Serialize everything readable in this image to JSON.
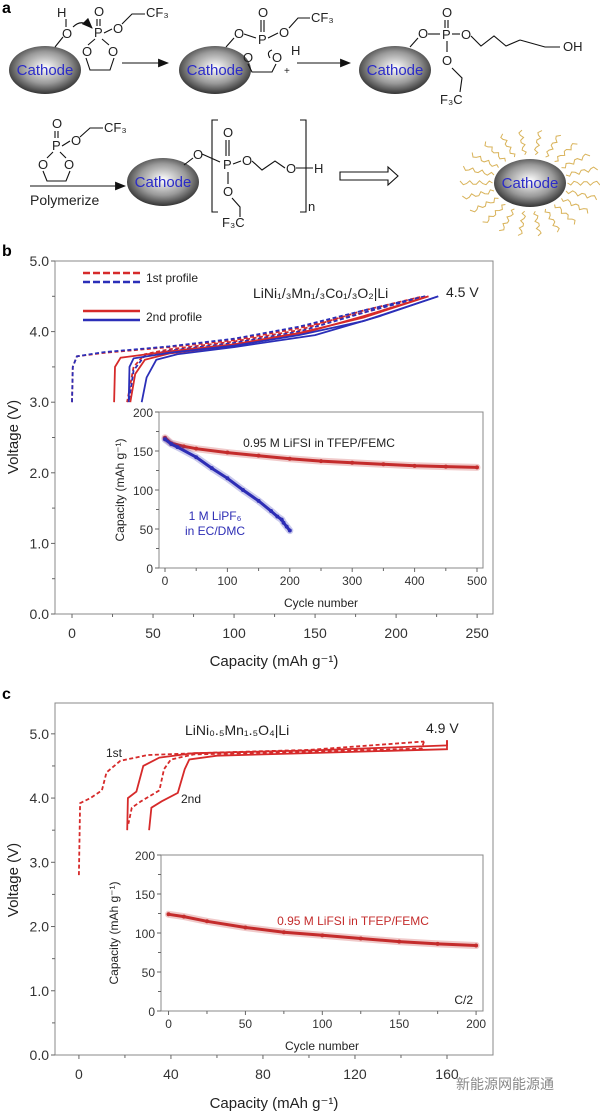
{
  "diagram": {
    "panel_label": "a",
    "cathode": "Cathode",
    "O": "O",
    "P": "P",
    "H": "H",
    "OH": "OH",
    "CF3": "CF₃",
    "F3C": "F₃C",
    "plus": "+",
    "polymerize": "Polymerize",
    "n": "n"
  },
  "watermark": "新能源网能源通",
  "colors": {
    "red": "#d62a2a",
    "blue": "#2b2fb8",
    "inset_red": "#c42c2c",
    "inset_blue": "#2d2db5",
    "cathode_text": "#2b2bc8",
    "hair": "#d9b35a"
  },
  "chart_data": [
    {
      "id": "b",
      "panel_label": "b",
      "type": "line",
      "xlabel": "Capacity (mAh g⁻¹)",
      "ylabel": "Voltage (V)",
      "xlim": [
        -20,
        260
      ],
      "ylim": [
        0,
        5
      ],
      "xticks": [
        0,
        50,
        100,
        150,
        200,
        250
      ],
      "yticks": [
        0.0,
        1.0,
        2.0,
        3.0,
        4.0,
        5.0
      ],
      "grid": false,
      "legend_position": "top-left",
      "legend": [
        {
          "label": "1st profile",
          "style": "dashed"
        },
        {
          "label": "2nd profile",
          "style": "solid"
        }
      ],
      "annotations": {
        "cell": "LiNi₁/₃Mn₁/₃Co₁/₃O₂|Li",
        "cutoff": "4.5 V"
      },
      "series": [
        {
          "color": "red",
          "style": "dashed",
          "points": [
            [
              0,
              3.0
            ],
            [
              0.5,
              3.5
            ],
            [
              3,
              3.65
            ],
            [
              20,
              3.7
            ],
            [
              60,
              3.78
            ],
            [
              100,
              3.88
            ],
            [
              140,
              4.05
            ],
            [
              180,
              4.27
            ],
            [
              215,
              4.49
            ]
          ]
        },
        {
          "color": "red",
          "style": "dashed",
          "points": [
            [
              215,
              4.49
            ],
            [
              180,
              4.3
            ],
            [
              140,
              4.02
            ],
            [
              100,
              3.86
            ],
            [
              60,
              3.75
            ],
            [
              45,
              3.68
            ],
            [
              38,
              3.5
            ],
            [
              34,
              3.0
            ]
          ]
        },
        {
          "color": "blue",
          "style": "dashed",
          "points": [
            [
              0,
              3.0
            ],
            [
              0.5,
              3.5
            ],
            [
              3,
              3.65
            ],
            [
              20,
              3.71
            ],
            [
              60,
              3.79
            ],
            [
              100,
              3.9
            ],
            [
              140,
              4.07
            ],
            [
              180,
              4.3
            ],
            [
              218,
              4.5
            ]
          ]
        },
        {
          "color": "blue",
          "style": "dashed",
          "points": [
            [
              218,
              4.5
            ],
            [
              182,
              4.28
            ],
            [
              140,
              4.0
            ],
            [
              100,
              3.84
            ],
            [
              60,
              3.73
            ],
            [
              45,
              3.66
            ],
            [
              38,
              3.45
            ],
            [
              35,
              3.0
            ]
          ]
        },
        {
          "color": "red",
          "style": "solid",
          "points": [
            [
              26,
              3.0
            ],
            [
              26.5,
              3.5
            ],
            [
              30,
              3.63
            ],
            [
              60,
              3.72
            ],
            [
              100,
              3.82
            ],
            [
              140,
              3.98
            ],
            [
              180,
              4.2
            ],
            [
              220,
              4.5
            ]
          ]
        },
        {
          "color": "red",
          "style": "solid",
          "points": [
            [
              220,
              4.5
            ],
            [
              180,
              4.22
            ],
            [
              140,
              3.96
            ],
            [
              100,
              3.8
            ],
            [
              60,
              3.69
            ],
            [
              45,
              3.6
            ],
            [
              39,
              3.4
            ],
            [
              36,
              3.0
            ]
          ]
        },
        {
          "color": "blue",
          "style": "solid",
          "points": [
            [
              35,
              3.0
            ],
            [
              35.5,
              3.5
            ],
            [
              38,
              3.62
            ],
            [
              60,
              3.7
            ],
            [
              100,
              3.8
            ],
            [
              140,
              3.95
            ],
            [
              180,
              4.15
            ],
            [
              226,
              4.5
            ]
          ]
        },
        {
          "color": "blue",
          "style": "solid",
          "points": [
            [
              226,
              4.5
            ],
            [
              190,
              4.22
            ],
            [
              150,
              3.95
            ],
            [
              100,
              3.78
            ],
            [
              65,
              3.68
            ],
            [
              52,
              3.6
            ],
            [
              46,
              3.35
            ],
            [
              43,
              3.0
            ]
          ]
        }
      ],
      "inset": {
        "type": "scatter",
        "xlabel": "Cycle number",
        "ylabel": "Capacity (mAh g⁻¹)",
        "xlim": [
          -10,
          510
        ],
        "ylim": [
          0,
          200
        ],
        "xticks": [
          0,
          100,
          200,
          300,
          400,
          500
        ],
        "yticks": [
          0,
          50,
          100,
          150,
          200
        ],
        "series": [
          {
            "name": "0.95 M LiFSI in TFEP/FEMC",
            "color": "inset_red",
            "points": [
              [
                0,
                167
              ],
              [
                10,
                160
              ],
              [
                30,
                156
              ],
              [
                50,
                153
              ],
              [
                100,
                148
              ],
              [
                150,
                144
              ],
              [
                200,
                140
              ],
              [
                250,
                137
              ],
              [
                300,
                135
              ],
              [
                350,
                133
              ],
              [
                400,
                131
              ],
              [
                450,
                130
              ],
              [
                500,
                129
              ]
            ]
          },
          {
            "name": "1 M LiPF₆ in EC/DMC",
            "name_lines": [
              "1 M LiPF₆",
              "in EC/DMC"
            ],
            "color": "inset_blue",
            "points": [
              [
                0,
                165
              ],
              [
                10,
                159
              ],
              [
                20,
                155
              ],
              [
                50,
                142
              ],
              [
                75,
                128
              ],
              [
                100,
                115
              ],
              [
                125,
                100
              ],
              [
                150,
                86
              ],
              [
                170,
                73
              ],
              [
                180,
                66
              ],
              [
                187,
                62
              ],
              [
                190,
                58
              ],
              [
                195,
                53
              ],
              [
                200,
                48
              ]
            ]
          }
        ]
      }
    },
    {
      "id": "c",
      "panel_label": "c",
      "type": "line",
      "xlabel": "Capacity (mAh g⁻¹)",
      "ylabel": "Voltage (V)",
      "xlim": [
        -12,
        180
      ],
      "ylim": [
        0,
        5.5
      ],
      "xticks": [
        0,
        40,
        80,
        120,
        160
      ],
      "yticks": [
        0.0,
        1.0,
        2.0,
        3.0,
        4.0,
        5.0
      ],
      "grid": false,
      "annotations": {
        "cell": "LiNi₀.₅Mn₁.₅O₄|Li",
        "cutoff": "4.9 V",
        "first": "1st",
        "second": "2nd"
      },
      "series": [
        {
          "color": "red",
          "style": "dashed",
          "points": [
            [
              0,
              2.8
            ],
            [
              0.5,
              3.92
            ],
            [
              5,
              4.0
            ],
            [
              10,
              4.12
            ],
            [
              12,
              4.4
            ],
            [
              18,
              4.58
            ],
            [
              30,
              4.67
            ],
            [
              60,
              4.71
            ],
            [
              100,
              4.75
            ],
            [
              150,
              4.88
            ]
          ]
        },
        {
          "color": "red",
          "style": "dashed",
          "points": [
            [
              150,
              4.88
            ],
            [
              149,
              4.77
            ],
            [
              100,
              4.72
            ],
            [
              50,
              4.68
            ],
            [
              40,
              4.6
            ],
            [
              37,
              4.45
            ],
            [
              35,
              4.12
            ],
            [
              27,
              3.95
            ],
            [
              23,
              3.85
            ],
            [
              21.5,
              3.6
            ]
          ]
        },
        {
          "color": "red",
          "style": "solid",
          "points": [
            [
              21,
              3.5
            ],
            [
              21.3,
              4.0
            ],
            [
              25,
              4.1
            ],
            [
              28,
              4.5
            ],
            [
              35,
              4.63
            ],
            [
              50,
              4.7
            ],
            [
              100,
              4.74
            ],
            [
              160,
              4.82
            ],
            [
              160,
              4.9
            ]
          ]
        },
        {
          "color": "red",
          "style": "solid",
          "points": [
            [
              160,
              4.9
            ],
            [
              160,
              4.76
            ],
            [
              100,
              4.7
            ],
            [
              60,
              4.66
            ],
            [
              48,
              4.6
            ],
            [
              46,
              4.45
            ],
            [
              43,
              4.08
            ],
            [
              36,
              3.95
            ],
            [
              31.5,
              3.85
            ],
            [
              30.5,
              3.5
            ]
          ]
        }
      ],
      "inset": {
        "type": "scatter",
        "xlabel": "Cycle number",
        "ylabel": "Capacity (mAh g⁻¹)",
        "xlim": [
          -5,
          205
        ],
        "ylim": [
          0,
          200
        ],
        "xticks": [
          0,
          50,
          100,
          150,
          200
        ],
        "yticks": [
          0,
          50,
          100,
          150,
          200
        ],
        "rate": "C/2",
        "series": [
          {
            "name": "0.95 M LiFSI in TFEP/FEMC",
            "color": "inset_red",
            "points": [
              [
                0,
                124
              ],
              [
                10,
                121
              ],
              [
                25,
                115
              ],
              [
                50,
                107
              ],
              [
                75,
                101
              ],
              [
                100,
                97
              ],
              [
                125,
                93
              ],
              [
                150,
                89
              ],
              [
                175,
                86
              ],
              [
                200,
                84
              ]
            ]
          }
        ]
      }
    }
  ]
}
